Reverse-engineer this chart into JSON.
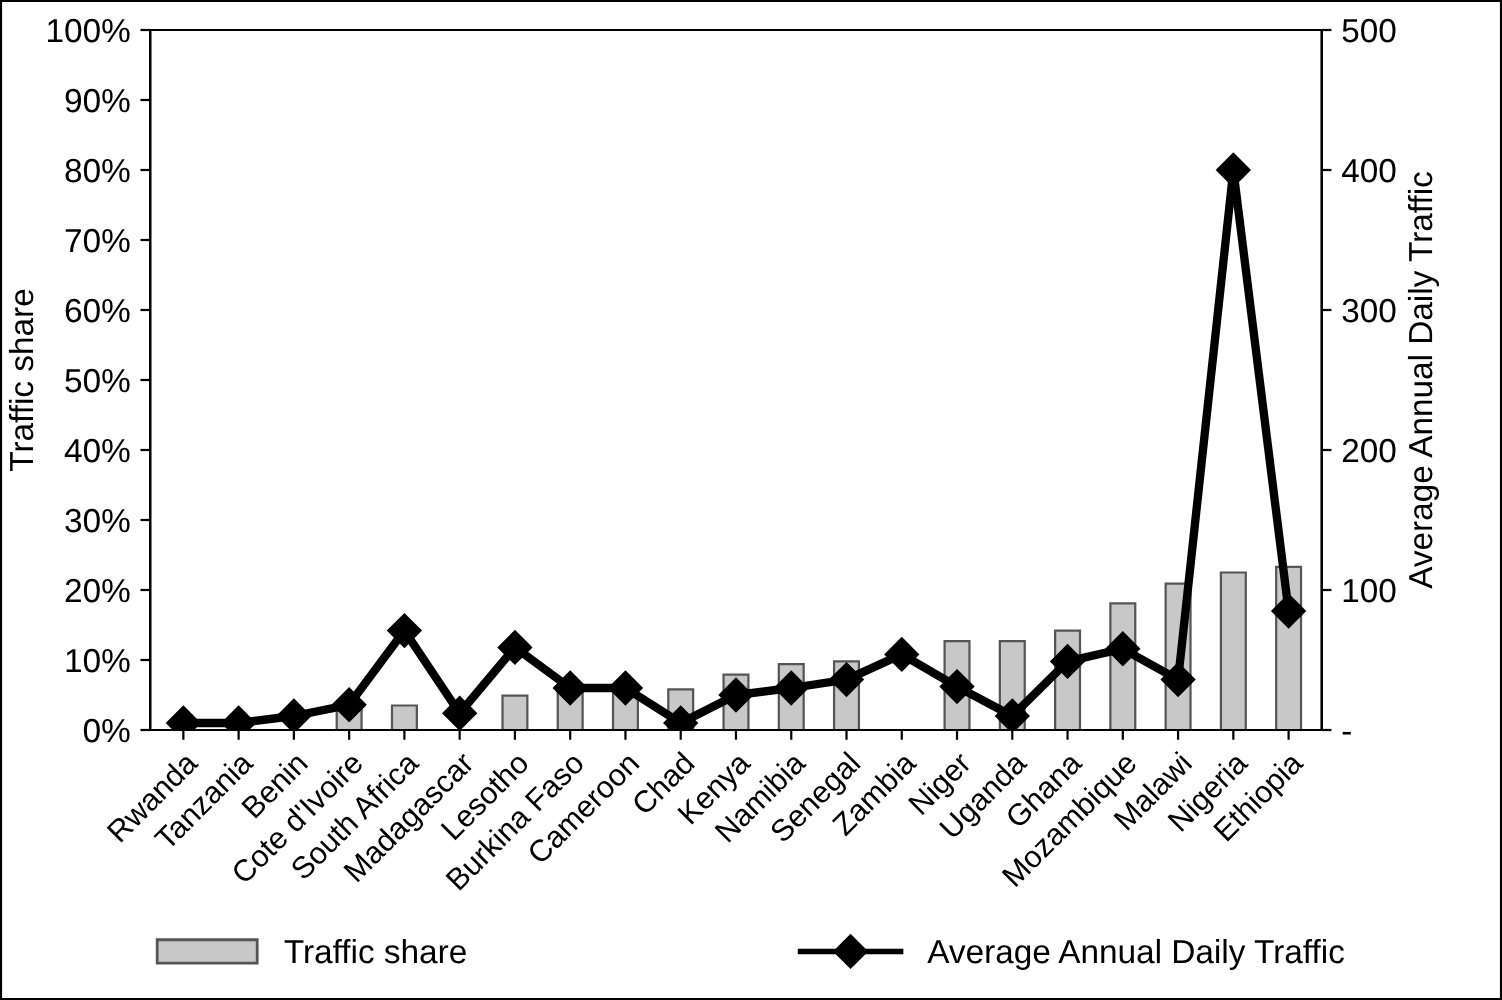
{
  "chart_data": {
    "type": "bar",
    "categories": [
      "Rwanda",
      "Tanzania",
      "Benin",
      "Cote d'Ivoire",
      "South Africa",
      "Madagascar",
      "Lesotho",
      "Burkina Faso",
      "Cameroon",
      "Chad",
      "Kenya",
      "Namibia",
      "Senegal",
      "Zambia",
      "Niger",
      "Uganda",
      "Ghana",
      "Mozambique",
      "Malawi",
      "Nigeria",
      "Ethiopia"
    ],
    "series": [
      {
        "name": "Traffic share",
        "color": "#c8c8c8",
        "values": [
          null,
          null,
          null,
          3.5,
          3.5,
          null,
          4.9,
          5.8,
          6,
          5.8,
          7.9,
          9.4,
          9.8,
          null,
          12.7,
          12.7,
          14.2,
          18.1,
          20.9,
          22.5,
          23.3
        ]
      },
      {
        "name": "Average Annual Daily Traffic",
        "type": "line",
        "axis": "y2",
        "color": "#000000",
        "marker": "diamond",
        "line_style": "solid",
        "values": [
          5,
          5,
          10,
          18,
          71,
          12,
          59,
          30,
          30,
          5,
          25,
          30,
          36,
          54,
          31,
          10,
          49,
          58,
          36,
          400,
          85
        ]
      }
    ],
    "ylabel": "Traffic share",
    "y2label": "Average Annual Daily Traffic",
    "ylim": [
      0,
      100
    ],
    "yticks": [
      {
        "value": 0,
        "label": "0%"
      },
      {
        "value": 10,
        "label": "10%"
      },
      {
        "value": 20,
        "label": "20%"
      },
      {
        "value": 30,
        "label": "30%"
      },
      {
        "value": 40,
        "label": "40%"
      },
      {
        "value": 50,
        "label": "50%"
      },
      {
        "value": 60,
        "label": "60%"
      },
      {
        "value": 70,
        "label": "70%"
      },
      {
        "value": 80,
        "label": "80%"
      },
      {
        "value": 90,
        "label": "90%"
      },
      {
        "value": 100,
        "label": "100%"
      }
    ],
    "y2lim": [
      0,
      500
    ],
    "y2ticks": [
      {
        "value": 0,
        "label": "-"
      },
      100,
      200,
      300,
      400,
      500
    ],
    "grid": false,
    "legend": "bottom"
  }
}
